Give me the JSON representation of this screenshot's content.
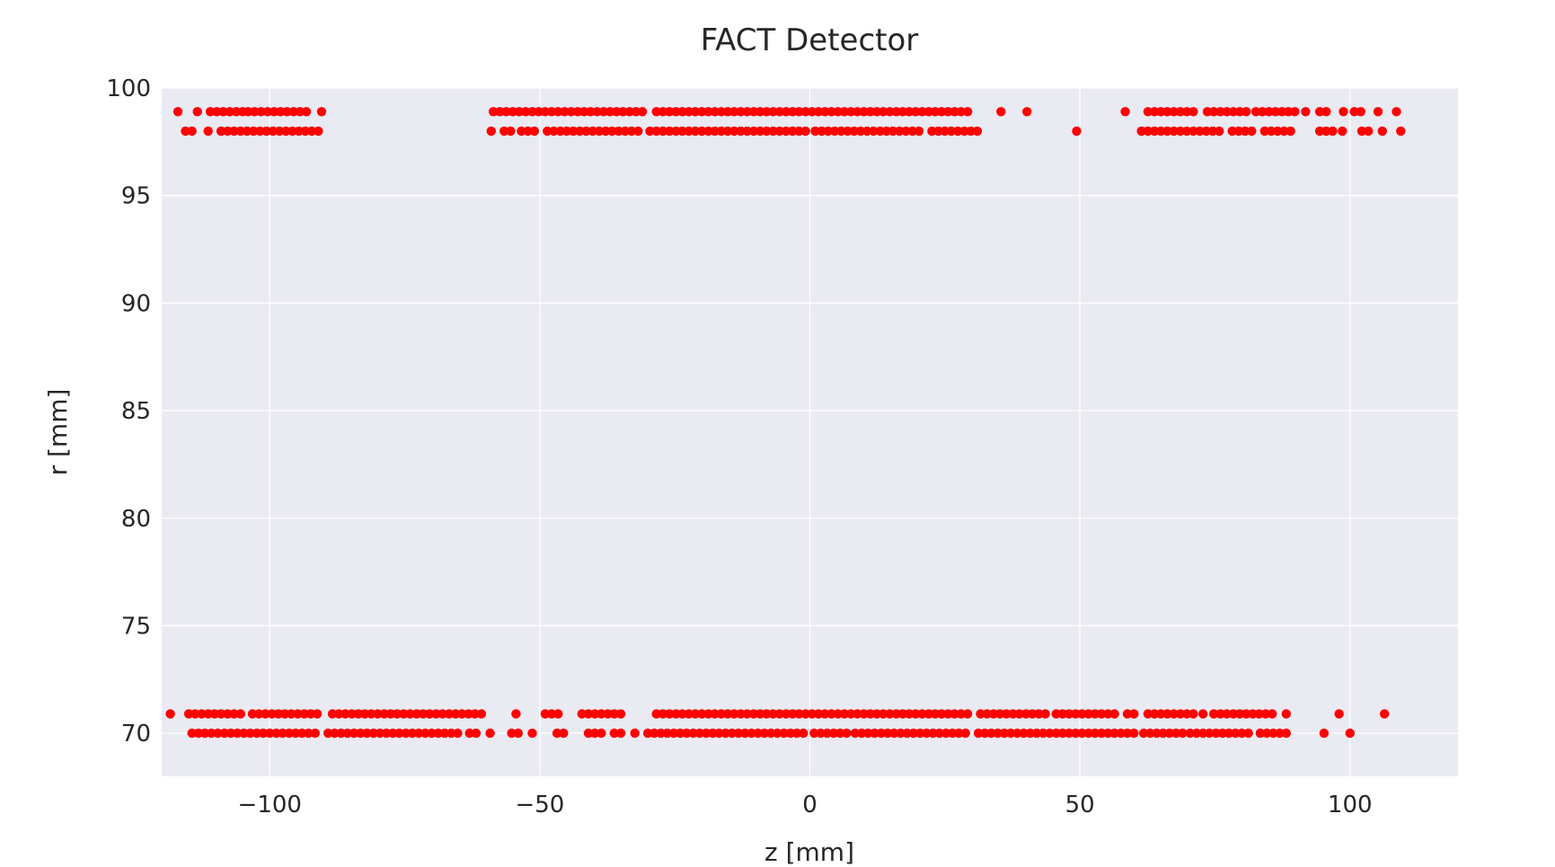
{
  "chart_data": {
    "type": "scatter",
    "title": "FACT Detector",
    "xlabel": "z [mm]",
    "ylabel": "r [mm]",
    "xlim": [
      -120,
      120
    ],
    "ylim": [
      68,
      100
    ],
    "x_ticks": [
      -100,
      -50,
      0,
      50,
      100
    ],
    "x_tick_labels": [
      "−100",
      "−50",
      "0",
      "50",
      "100"
    ],
    "y_ticks": [
      70,
      75,
      80,
      85,
      90,
      95,
      100
    ],
    "y_tick_labels": [
      "70",
      "75",
      "80",
      "85",
      "90",
      "95",
      "100"
    ],
    "grid": true,
    "marker_color": "#ff0000",
    "background_color": "#eaeaf2",
    "series": [
      {
        "r": 98.9,
        "segments": [
          {
            "from": -117.0,
            "to": -117.0,
            "step": 1.2
          },
          {
            "from": -113.4,
            "to": -113.4,
            "step": 1.2
          },
          {
            "from": -111.0,
            "to": -105.0,
            "step": 1.2
          },
          {
            "from": -104.0,
            "to": -93.2,
            "step": 1.2
          },
          {
            "from": -90.4,
            "to": -90.4,
            "step": 1.2
          },
          {
            "from": -58.6,
            "to": -30.6,
            "step": 1.2
          },
          {
            "from": -28.4,
            "to": 29.2,
            "step": 1.2
          },
          {
            "from": 35.4,
            "to": 35.4,
            "step": 1.2
          },
          {
            "from": 40.2,
            "to": 40.2,
            "step": 1.2
          },
          {
            "from": 58.4,
            "to": 58.4,
            "step": 1.2
          },
          {
            "from": 62.6,
            "to": 71.0,
            "step": 1.2
          },
          {
            "from": 73.6,
            "to": 80.8,
            "step": 1.2
          },
          {
            "from": 82.6,
            "to": 89.8,
            "step": 1.2
          },
          {
            "from": 91.8,
            "to": 91.8,
            "step": 1.2
          },
          {
            "from": 94.4,
            "to": 95.6,
            "step": 1.2
          },
          {
            "from": 98.8,
            "to": 98.8,
            "step": 1.2
          },
          {
            "from": 100.8,
            "to": 102.0,
            "step": 1.2
          },
          {
            "from": 105.2,
            "to": 105.2,
            "step": 1.2
          },
          {
            "from": 108.6,
            "to": 108.6,
            "step": 1.2
          }
        ]
      },
      {
        "r": 98.0,
        "segments": [
          {
            "from": -115.6,
            "to": -114.4,
            "step": 1.2
          },
          {
            "from": -111.4,
            "to": -111.4,
            "step": 1.2
          },
          {
            "from": -109.0,
            "to": -91.0,
            "step": 1.2
          },
          {
            "from": -59.0,
            "to": -59.0,
            "step": 1.2
          },
          {
            "from": -56.6,
            "to": -55.4,
            "step": 1.2
          },
          {
            "from": -53.4,
            "to": -51.0,
            "step": 1.2
          },
          {
            "from": -48.6,
            "to": -31.8,
            "step": 1.2
          },
          {
            "from": -29.6,
            "to": -1.4,
            "step": 1.2
          },
          {
            "from": 1.0,
            "to": 20.2,
            "step": 1.2
          },
          {
            "from": 22.6,
            "to": 31.0,
            "step": 1.2
          },
          {
            "from": 49.4,
            "to": 49.4,
            "step": 1.2
          },
          {
            "from": 61.4,
            "to": 75.8,
            "step": 1.2
          },
          {
            "from": 78.2,
            "to": 82.0,
            "step": 1.2
          },
          {
            "from": 84.2,
            "to": 89.0,
            "step": 1.2
          },
          {
            "from": 94.4,
            "to": 96.8,
            "step": 1.2
          },
          {
            "from": 98.6,
            "to": 98.6,
            "step": 1.2
          },
          {
            "from": 102.2,
            "to": 103.4,
            "step": 1.2
          },
          {
            "from": 106.0,
            "to": 106.0,
            "step": 1.2
          },
          {
            "from": 109.4,
            "to": 109.4,
            "step": 1.2
          }
        ]
      },
      {
        "r": 70.9,
        "segments": [
          {
            "from": -118.4,
            "to": -118.4,
            "step": 1.2
          },
          {
            "from": -115.0,
            "to": -105.4,
            "step": 1.2
          },
          {
            "from": -103.2,
            "to": -91.2,
            "step": 1.2
          },
          {
            "from": -88.4,
            "to": -61.0,
            "step": 1.2
          },
          {
            "from": -54.4,
            "to": -54.4,
            "step": 1.2
          },
          {
            "from": -49.0,
            "to": -46.6,
            "step": 1.2
          },
          {
            "from": -42.2,
            "to": -35.0,
            "step": 1.2
          },
          {
            "from": -28.4,
            "to": 29.2,
            "step": 1.2
          },
          {
            "from": 31.6,
            "to": 43.6,
            "step": 1.2
          },
          {
            "from": 45.6,
            "to": 56.4,
            "step": 1.2
          },
          {
            "from": 58.8,
            "to": 60.0,
            "step": 1.2
          },
          {
            "from": 62.6,
            "to": 70.8,
            "step": 1.2
          },
          {
            "from": 72.8,
            "to": 72.8,
            "step": 1.2
          },
          {
            "from": 74.8,
            "to": 86.0,
            "step": 1.2
          },
          {
            "from": 88.2,
            "to": 88.2,
            "step": 1.2
          },
          {
            "from": 98.0,
            "to": 98.0,
            "step": 1.2
          },
          {
            "from": 106.4,
            "to": 106.4,
            "step": 1.2
          }
        ]
      },
      {
        "r": 70.0,
        "segments": [
          {
            "from": -114.4,
            "to": -91.2,
            "step": 1.2
          },
          {
            "from": -89.2,
            "to": -65.2,
            "step": 1.2
          },
          {
            "from": -63.0,
            "to": -61.8,
            "step": 1.2
          },
          {
            "from": -59.2,
            "to": -59.2,
            "step": 1.2
          },
          {
            "from": -55.2,
            "to": -54.0,
            "step": 1.2
          },
          {
            "from": -51.4,
            "to": -51.4,
            "step": 1.2
          },
          {
            "from": -46.8,
            "to": -45.6,
            "step": 1.2
          },
          {
            "from": -41.0,
            "to": -38.6,
            "step": 1.2
          },
          {
            "from": -36.2,
            "to": -35.0,
            "step": 1.2
          },
          {
            "from": -32.4,
            "to": -32.4,
            "step": 1.2
          },
          {
            "from": -30.0,
            "to": -1.2,
            "step": 1.2
          },
          {
            "from": 0.8,
            "to": 6.2,
            "step": 1.2
          },
          {
            "from": 8.4,
            "to": 28.8,
            "step": 1.2
          },
          {
            "from": 31.2,
            "to": 59.4,
            "step": 1.2
          },
          {
            "from": 61.8,
            "to": 68.8,
            "step": 1.2
          },
          {
            "from": 70.4,
            "to": 81.2,
            "step": 1.2
          },
          {
            "from": 83.4,
            "to": 88.8,
            "step": 1.2
          },
          {
            "from": 95.2,
            "to": 95.2,
            "step": 1.2
          },
          {
            "from": 100.0,
            "to": 100.0,
            "step": 1.2
          }
        ]
      }
    ]
  }
}
